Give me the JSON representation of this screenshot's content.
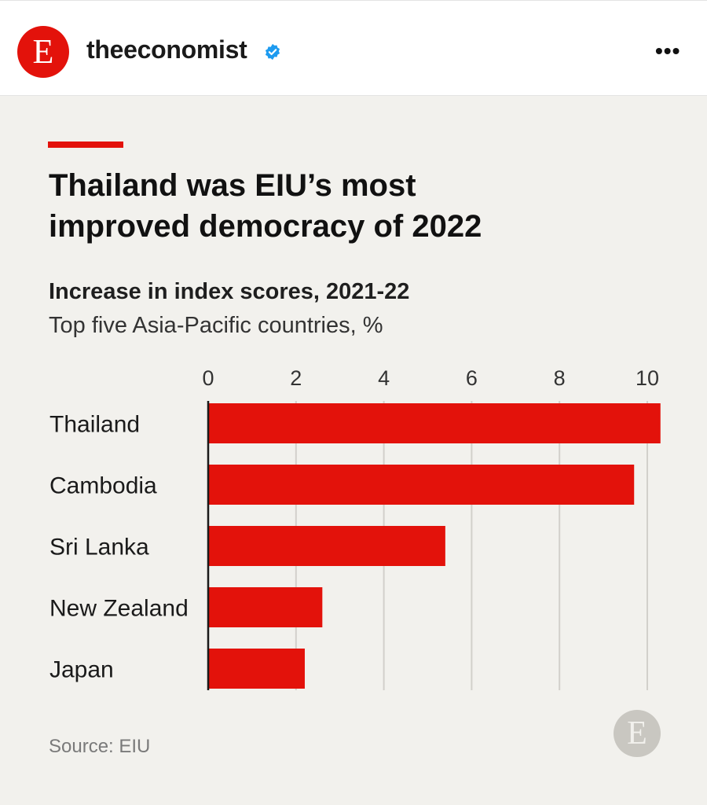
{
  "header": {
    "avatar_letter": "E",
    "handle": "theeconomist",
    "more_label": "•••",
    "brand_color": "#e3120b"
  },
  "post": {
    "title_line1": "Thailand was EIU’s most",
    "title_line2": "improved democracy of 2022",
    "subtitle": "Increase in index scores, 2021-22",
    "subtitle2": "Top five Asia-Pacific countries, %",
    "source": "Source: EIU",
    "logo_letter": "E"
  },
  "chart_data": {
    "type": "bar",
    "orientation": "horizontal",
    "title": "Increase in index scores, 2021-22",
    "subtitle": "Top five Asia-Pacific countries, %",
    "categories": [
      "Thailand",
      "Cambodia",
      "Sri Lanka",
      "New Zealand",
      "Japan"
    ],
    "values": [
      10.3,
      9.7,
      5.4,
      2.6,
      2.2
    ],
    "xlim": [
      0,
      10
    ],
    "xticks": [
      0,
      2,
      4,
      6,
      8,
      10
    ],
    "bar_color": "#e3120b",
    "grid": true
  }
}
